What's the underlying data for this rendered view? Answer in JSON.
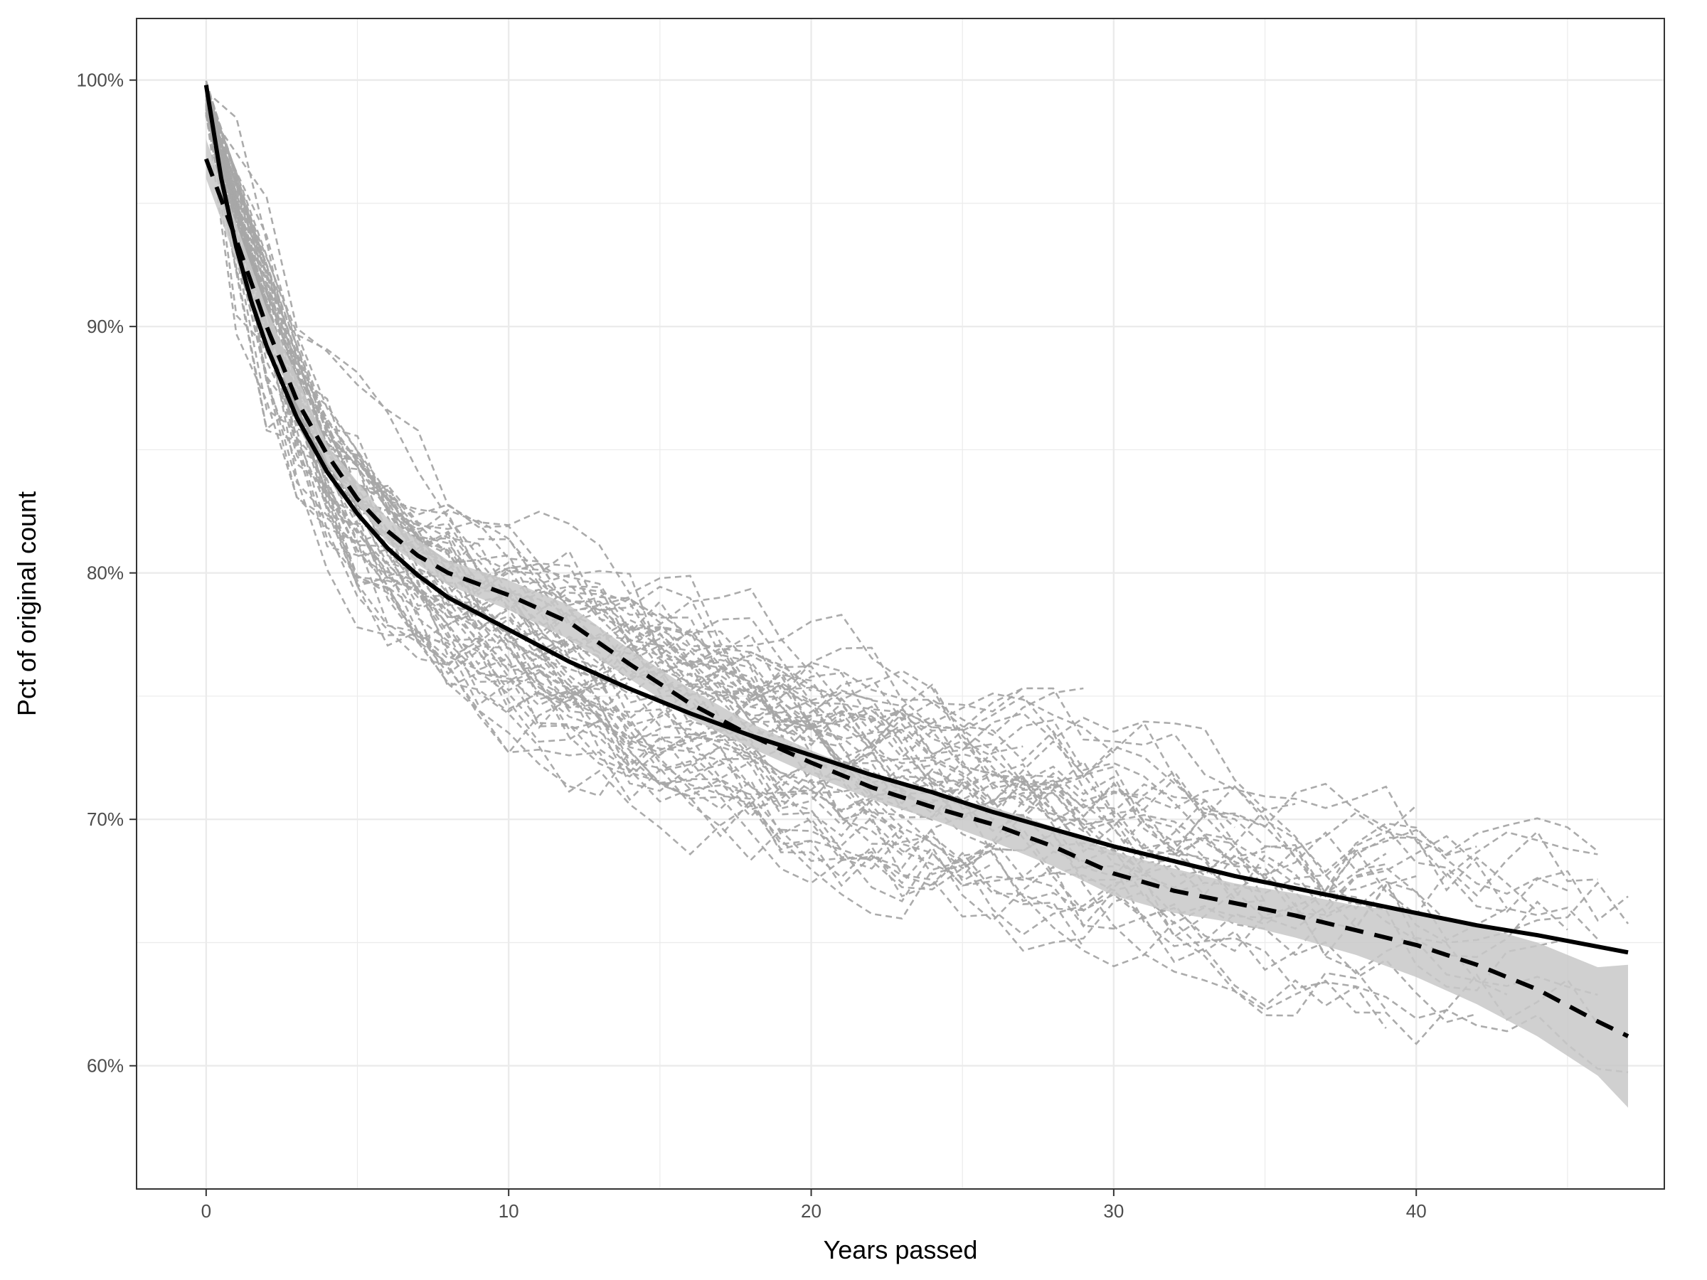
{
  "chart_data": {
    "type": "line",
    "title": "",
    "xlabel": "Years passed",
    "ylabel": "Pct of original count",
    "xlim": [
      -2.3,
      48.2
    ],
    "ylim": [
      55,
      102.5
    ],
    "x_ticks": [
      0,
      10,
      20,
      30,
      40
    ],
    "x_tick_labels": [
      "0",
      "10",
      "20",
      "30",
      "40"
    ],
    "y_ticks": [
      60,
      70,
      80,
      90,
      100
    ],
    "y_tick_labels": [
      "60%",
      "70%",
      "80%",
      "90%",
      "100%"
    ],
    "grid": true,
    "legend": "none",
    "colors": {
      "background_lines": "#a6a6a6",
      "fit_lines": "#000000",
      "ribbon": "#c8c8c8",
      "grid": "#ebebeb",
      "panel_border": "#333333"
    },
    "series": [
      {
        "style": "solid",
        "x": [
          0,
          0.5,
          1,
          1.5,
          2,
          3,
          4,
          5,
          6,
          7,
          8,
          10,
          12,
          14,
          16,
          18,
          20,
          22,
          24,
          26,
          28,
          30,
          32,
          34,
          36,
          38,
          40,
          42,
          44,
          47
        ],
        "y": [
          99.8,
          96.0,
          93.2,
          91.0,
          89.2,
          86.3,
          84.1,
          82.4,
          81.0,
          79.9,
          79.0,
          77.7,
          76.4,
          75.3,
          74.3,
          73.4,
          72.6,
          71.8,
          71.1,
          70.3,
          69.6,
          68.9,
          68.3,
          67.7,
          67.2,
          66.7,
          66.2,
          65.7,
          65.3,
          64.6
        ]
      },
      {
        "style": "dashed",
        "x": [
          0,
          1,
          2,
          3,
          4,
          5,
          6,
          7,
          8,
          10,
          12,
          14,
          16,
          18,
          20,
          22,
          24,
          26,
          28,
          30,
          32,
          34,
          36,
          38,
          40,
          42,
          44,
          46,
          47
        ],
        "y": [
          96.8,
          93.5,
          90.0,
          87.0,
          84.8,
          83.0,
          81.7,
          80.7,
          80.0,
          79.1,
          78.0,
          76.3,
          74.7,
          73.4,
          72.3,
          71.3,
          70.5,
          69.8,
          68.9,
          67.8,
          67.1,
          66.6,
          66.1,
          65.5,
          64.9,
          64.1,
          63.1,
          61.8,
          61.2
        ]
      }
    ],
    "ribbon": {
      "x": [
        0,
        2,
        4,
        6,
        8,
        10,
        12,
        14,
        16,
        18,
        20,
        22,
        24,
        26,
        28,
        30,
        32,
        34,
        36,
        38,
        40,
        42,
        44,
        46,
        47
      ],
      "lower": [
        96.0,
        89.3,
        84.4,
        81.2,
        79.5,
        78.5,
        77.3,
        75.7,
        74.1,
        72.9,
        71.8,
        70.8,
        70.0,
        69.1,
        68.1,
        66.9,
        66.2,
        65.8,
        65.2,
        64.5,
        63.6,
        62.5,
        61.2,
        59.6,
        58.3
      ],
      "upper": [
        97.6,
        90.7,
        85.2,
        82.2,
        80.5,
        79.7,
        78.7,
        76.9,
        75.3,
        73.9,
        72.8,
        71.8,
        71.0,
        70.5,
        69.7,
        68.7,
        68.0,
        67.4,
        67.0,
        66.5,
        66.2,
        65.7,
        65.0,
        64.0,
        64.1
      ]
    },
    "background_lines": {
      "count": 60,
      "style": "dashed",
      "color": "#a6a6a6",
      "description_range": "individual trajectories spanning roughly 56% to 100% over 0 to 47 years"
    }
  }
}
